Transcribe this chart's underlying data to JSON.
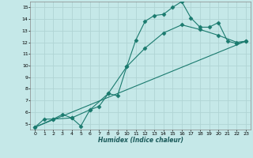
{
  "xlabel": "Humidex (Indice chaleur)",
  "background_color": "#c5e8e8",
  "grid_color": "#b0d4d4",
  "line_color": "#1a7a6e",
  "xlim": [
    -0.5,
    23.5
  ],
  "ylim": [
    4.5,
    15.5
  ],
  "xticks": [
    0,
    1,
    2,
    3,
    4,
    5,
    6,
    7,
    8,
    9,
    10,
    11,
    12,
    13,
    14,
    15,
    16,
    17,
    18,
    19,
    20,
    21,
    22,
    23
  ],
  "yticks": [
    5,
    6,
    7,
    8,
    9,
    10,
    11,
    12,
    13,
    14,
    15
  ],
  "line1_x": [
    0,
    1,
    2,
    3,
    4,
    5,
    6,
    7,
    8,
    9,
    10,
    11,
    12,
    13,
    14,
    15,
    16,
    17,
    18,
    19,
    20,
    21,
    22,
    23
  ],
  "line1_y": [
    4.7,
    5.4,
    5.4,
    5.8,
    5.5,
    4.8,
    6.2,
    6.5,
    7.6,
    7.4,
    9.9,
    12.2,
    13.8,
    14.3,
    14.4,
    15.0,
    15.5,
    14.1,
    13.3,
    13.3,
    13.7,
    12.1,
    11.9,
    12.1
  ],
  "line2_x": [
    0,
    23
  ],
  "line2_y": [
    4.7,
    12.1
  ],
  "line3_x": [
    0,
    2,
    4,
    6,
    8,
    10,
    12,
    14,
    16,
    18,
    20,
    22,
    23
  ],
  "line3_y": [
    4.7,
    5.4,
    5.5,
    6.2,
    7.6,
    9.9,
    11.5,
    12.8,
    13.5,
    13.1,
    12.6,
    12.0,
    12.1
  ]
}
